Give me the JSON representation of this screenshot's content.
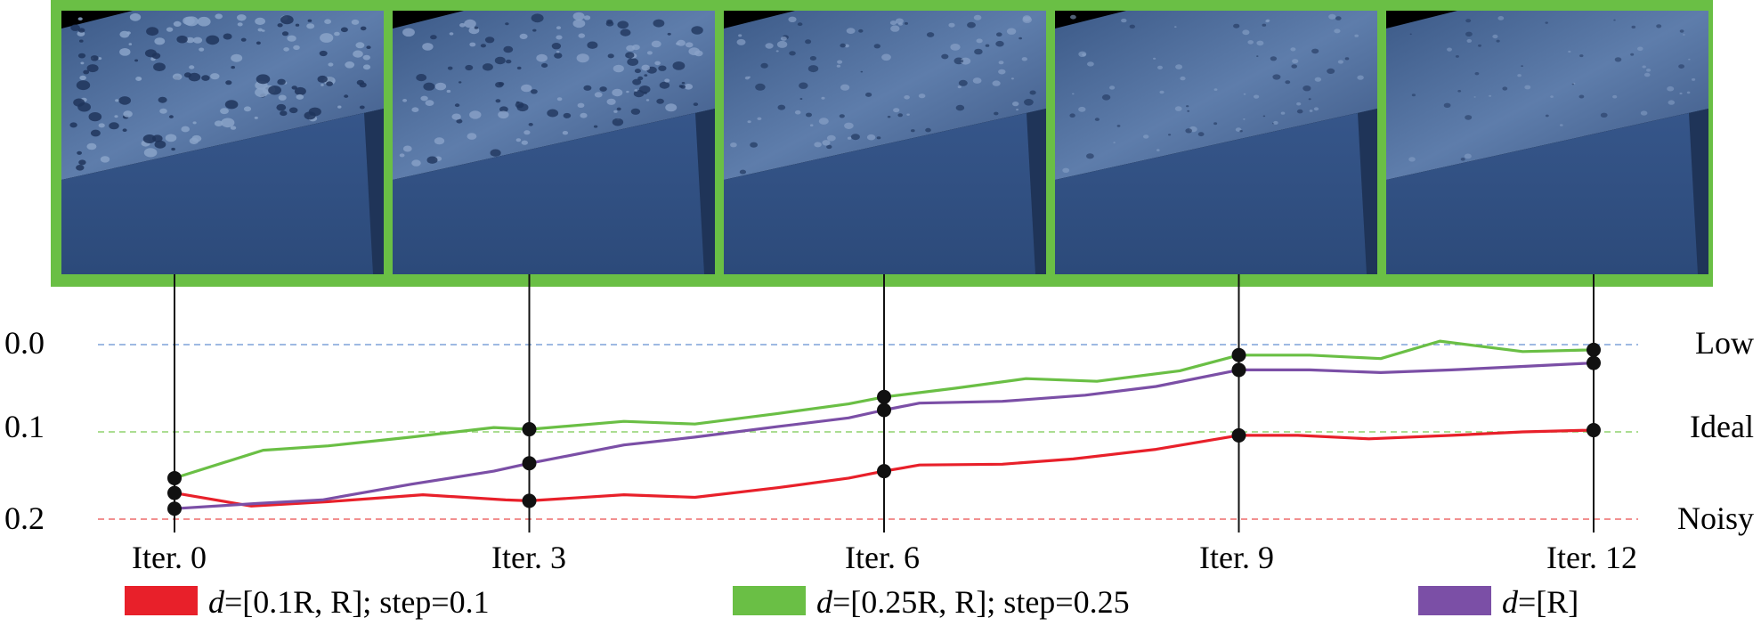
{
  "panels": [
    {
      "label": "Iter. 0",
      "noise": 1.0
    },
    {
      "label": "Iter. 3",
      "noise": 0.85
    },
    {
      "label": "Iter. 6",
      "noise": 0.55
    },
    {
      "label": "Iter. 9",
      "noise": 0.35
    },
    {
      "label": "Iter. 12",
      "noise": 0.2
    }
  ],
  "colors": {
    "frame": "#6abf45",
    "red": "#e8202a",
    "green": "#6abf45",
    "purple": "#7b4fa6",
    "low_line": "#7fa2d8",
    "ideal_line": "#8fd26e",
    "noisy_line": "#ee6b6b"
  },
  "chart_data": {
    "type": "line",
    "ylim": [
      0.0,
      0.2
    ],
    "y_inverted": true,
    "xlim": [
      0,
      12
    ],
    "yticks": [
      "0.0",
      "0.1",
      "0.2"
    ],
    "xticks": [
      {
        "x": 0,
        "label": "Iter. 0"
      },
      {
        "x": 3,
        "label": "Iter. 3"
      },
      {
        "x": 6,
        "label": "Iter. 6"
      },
      {
        "x": 9,
        "label": "Iter. 9"
      },
      {
        "x": 12,
        "label": "Iter. 12"
      }
    ],
    "reference_lines": [
      {
        "y": 0.0,
        "label": "Low",
        "color": "#7fa2d8"
      },
      {
        "y": 0.1,
        "label": "Ideal",
        "color": "#8fd26e"
      },
      {
        "y": 0.2,
        "label": "Noisy",
        "color": "#ee6b6b"
      }
    ],
    "series": [
      {
        "name": "d=[0.1R, R]; step=0.1",
        "color": "#e8202a",
        "x": [
          0,
          0.65,
          1.3,
          2.1,
          2.8,
          3.0,
          3.8,
          4.4,
          5.1,
          5.7,
          6.0,
          6.3,
          7.0,
          7.6,
          8.3,
          9.0,
          9.5,
          10.1,
          10.8,
          11.4,
          12.0
        ],
        "y": [
          0.17,
          0.185,
          0.18,
          0.172,
          0.178,
          0.179,
          0.172,
          0.175,
          0.164,
          0.153,
          0.145,
          0.138,
          0.137,
          0.131,
          0.12,
          0.104,
          0.104,
          0.108,
          0.104,
          0.1,
          0.098
        ]
      },
      {
        "name": "d=[0.25R, R]; step=0.25",
        "color": "#6abf45",
        "x": [
          0,
          0.75,
          1.3,
          2.0,
          2.7,
          3.0,
          3.8,
          4.4,
          5.1,
          5.7,
          6.0,
          6.6,
          7.2,
          7.8,
          8.5,
          9.0,
          9.6,
          10.2,
          10.7,
          11.4,
          12.0
        ],
        "y": [
          0.153,
          0.121,
          0.116,
          0.106,
          0.095,
          0.097,
          0.088,
          0.091,
          0.079,
          0.068,
          0.06,
          0.05,
          0.039,
          0.042,
          0.03,
          0.012,
          0.012,
          0.016,
          -0.004,
          0.008,
          0.006
        ]
      },
      {
        "name": "d=[R]",
        "color": "#7b4fa6",
        "x": [
          0,
          0.7,
          1.25,
          2.0,
          2.7,
          3.0,
          3.8,
          4.4,
          5.1,
          5.7,
          6.0,
          6.3,
          7.0,
          7.7,
          8.3,
          9.0,
          9.6,
          10.2,
          10.8,
          11.4,
          12.0
        ],
        "y": [
          0.188,
          0.182,
          0.178,
          0.16,
          0.145,
          0.136,
          0.115,
          0.106,
          0.094,
          0.084,
          0.075,
          0.067,
          0.065,
          0.058,
          0.048,
          0.029,
          0.029,
          0.032,
          0.029,
          0.025,
          0.021
        ]
      }
    ],
    "markers_at": [
      0,
      3,
      6,
      9,
      12
    ],
    "legend": [
      {
        "prefix": "d",
        "text": "=[0.1R, R]; step=0.1",
        "color": "#e8202a"
      },
      {
        "prefix": "d",
        "text": "=[0.25R, R]; step=0.25",
        "color": "#6abf45"
      },
      {
        "prefix": "d",
        "text": "=[R]",
        "color": "#7b4fa6"
      }
    ]
  }
}
